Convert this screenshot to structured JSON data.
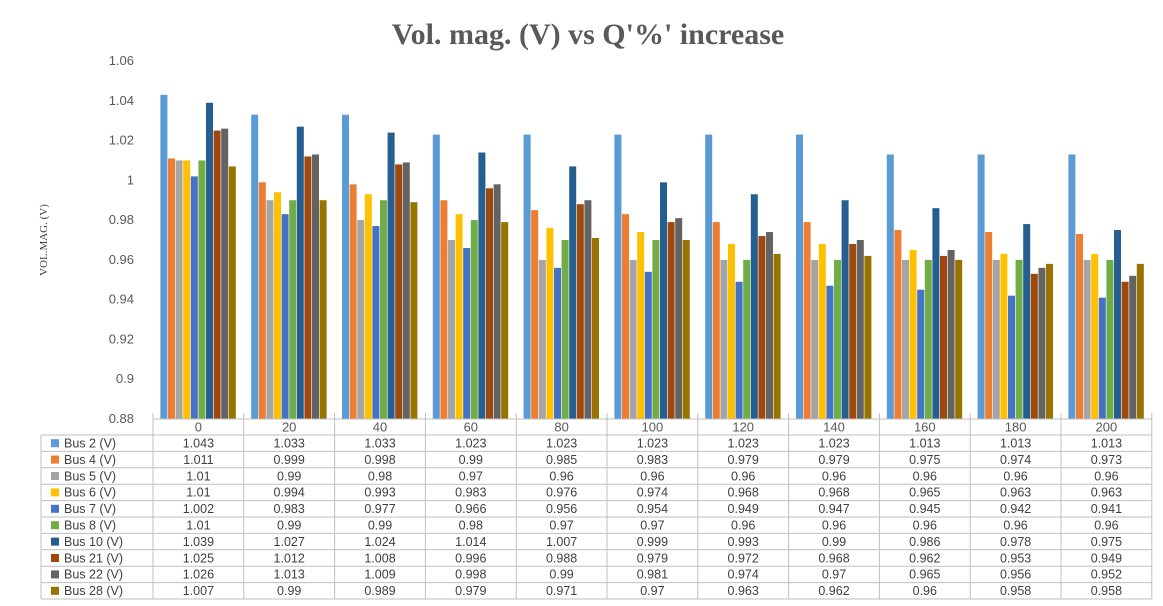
{
  "chart_data": {
    "type": "bar",
    "title": "Vol. mag. (V) vs Q'%' increase",
    "ylabel": "VOL.MAG. (V)",
    "xlabel": "",
    "ylim": [
      0.88,
      1.06
    ],
    "yticks": [
      "1.06",
      "1.04",
      "1.02",
      "1",
      "0.98",
      "0.96",
      "0.94",
      "0.92",
      "0.9",
      "0.88"
    ],
    "categories": [
      "0",
      "20",
      "40",
      "60",
      "80",
      "100",
      "120",
      "140",
      "160",
      "180",
      "200"
    ],
    "grid": false,
    "legend": "data-table",
    "series": [
      {
        "name": "Bus 2 (V)",
        "color": "#5B9BD5",
        "labels": [
          "1.043",
          "1.033",
          "1.033",
          "1.023",
          "1.023",
          "1.023",
          "1.023",
          "1.023",
          "1.013",
          "1.013",
          "1.013"
        ],
        "values": [
          1.043,
          1.033,
          1.033,
          1.023,
          1.023,
          1.023,
          1.023,
          1.023,
          1.013,
          1.013,
          1.013
        ]
      },
      {
        "name": "Bus 4 (V)",
        "color": "#ED7D31",
        "labels": [
          "1.011",
          "0.999",
          "0.998",
          "0.99",
          "0.985",
          "0.983",
          "0.979",
          "0.979",
          "0.975",
          "0.974",
          "0.973"
        ],
        "values": [
          1.011,
          0.999,
          0.998,
          0.99,
          0.985,
          0.983,
          0.979,
          0.979,
          0.975,
          0.974,
          0.973
        ]
      },
      {
        "name": "Bus 5 (V)",
        "color": "#A5A5A5",
        "labels": [
          "1.01",
          "0.99",
          "0.98",
          "0.97",
          "0.96",
          "0.96",
          "0.96",
          "0.96",
          "0.96",
          "0.96",
          "0.96"
        ],
        "values": [
          1.01,
          0.99,
          0.98,
          0.97,
          0.96,
          0.96,
          0.96,
          0.96,
          0.96,
          0.96,
          0.96
        ]
      },
      {
        "name": "Bus 6 (V)",
        "color": "#FFC000",
        "labels": [
          "1.01",
          "0.994",
          "0.993",
          "0.983",
          "0.976",
          "0.974",
          "0.968",
          "0.968",
          "0.965",
          "0.963",
          "0.963"
        ],
        "values": [
          1.01,
          0.994,
          0.993,
          0.983,
          0.976,
          0.974,
          0.968,
          0.968,
          0.965,
          0.963,
          0.963
        ]
      },
      {
        "name": "Bus 7 (V)",
        "color": "#4472C4",
        "labels": [
          "1.002",
          "0.983",
          "0.977",
          "0.966",
          "0.956",
          "0.954",
          "0.949",
          "0.947",
          "0.945",
          "0.942",
          "0.941"
        ],
        "values": [
          1.002,
          0.983,
          0.977,
          0.966,
          0.956,
          0.954,
          0.949,
          0.947,
          0.945,
          0.942,
          0.941
        ]
      },
      {
        "name": "Bus 8 (V)",
        "color": "#70AD47",
        "labels": [
          "1.01",
          "0.99",
          "0.99",
          "0.98",
          "0.97",
          "0.97",
          "0.96",
          "0.96",
          "0.96",
          "0.96",
          "0.96"
        ],
        "values": [
          1.01,
          0.99,
          0.99,
          0.98,
          0.97,
          0.97,
          0.96,
          0.96,
          0.96,
          0.96,
          0.96
        ]
      },
      {
        "name": "Bus 10 (V)",
        "color": "#255E91",
        "labels": [
          "1.039",
          "1.027",
          "1.024",
          "1.014",
          "1.007",
          "0.999",
          "0.993",
          "0.99",
          "0.986",
          "0.978",
          "0.975"
        ],
        "values": [
          1.039,
          1.027,
          1.024,
          1.014,
          1.007,
          0.999,
          0.993,
          0.99,
          0.986,
          0.978,
          0.975
        ]
      },
      {
        "name": "Bus 21 (V)",
        "color": "#9E480E",
        "labels": [
          "1.025",
          "1.012",
          "1.008",
          "0.996",
          "0.988",
          "0.979",
          "0.972",
          "0.968",
          "0.962",
          "0.953",
          "0.949"
        ],
        "values": [
          1.025,
          1.012,
          1.008,
          0.996,
          0.988,
          0.979,
          0.972,
          0.968,
          0.962,
          0.953,
          0.949
        ]
      },
      {
        "name": "Bus 22 (V)",
        "color": "#636363",
        "labels": [
          "1.026",
          "1.013",
          "1.009",
          "0.998",
          "0.99",
          "0.981",
          "0.974",
          "0.97",
          "0.965",
          "0.956",
          "0.952"
        ],
        "values": [
          1.026,
          1.013,
          1.009,
          0.998,
          0.99,
          0.981,
          0.974,
          0.97,
          0.965,
          0.956,
          0.952
        ]
      },
      {
        "name": "Bus 28 (V)",
        "color": "#997300",
        "labels": [
          "1.007",
          "0.99",
          "0.989",
          "0.979",
          "0.971",
          "0.97",
          "0.963",
          "0.962",
          "0.96",
          "0.958",
          "0.958"
        ],
        "values": [
          1.007,
          0.99,
          0.989,
          0.979,
          0.971,
          0.97,
          0.963,
          0.962,
          0.96,
          0.958,
          0.958
        ]
      }
    ]
  }
}
